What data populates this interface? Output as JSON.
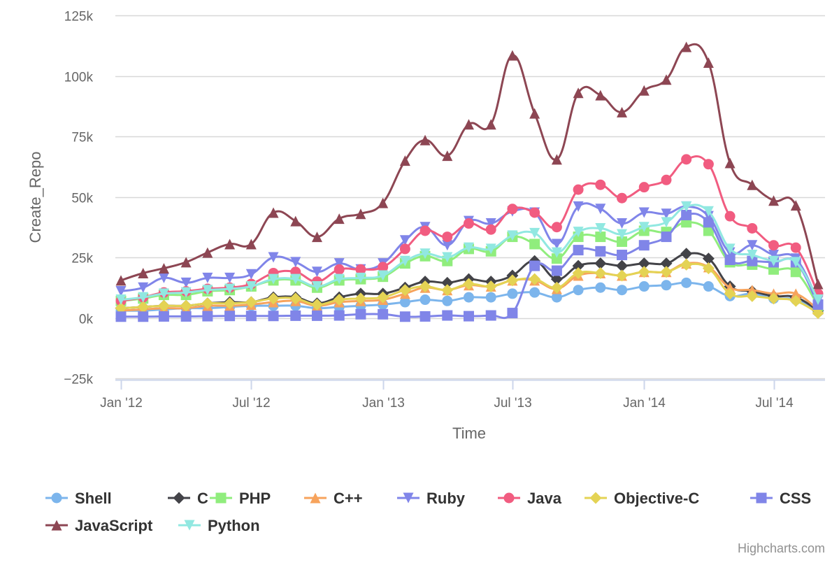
{
  "chart_data": {
    "type": "line",
    "title": "",
    "xlabel": "Time",
    "ylabel": "Create_Repo",
    "ylim": [
      -25000,
      125000
    ],
    "y_ticks": [
      -25000,
      0,
      25000,
      50000,
      75000,
      100000,
      125000
    ],
    "y_tick_labels": [
      "−25k",
      "0k",
      "25k",
      "50k",
      "75k",
      "100k",
      "125k"
    ],
    "x_range": [
      "2012-01-01",
      "2014-09-01"
    ],
    "x_ticks": [
      "2012-01-01",
      "2012-07-01",
      "2013-01-01",
      "2013-07-01",
      "2014-01-01",
      "2014-07-01"
    ],
    "x_tick_labels": [
      "Jan '12",
      "Jul '12",
      "Jan '13",
      "Jul '13",
      "Jan '14",
      "Jul '14"
    ],
    "grid": true,
    "legend_position": "bottom",
    "x": [
      "2012-01-01",
      "2012-02-01",
      "2012-03-01",
      "2012-04-01",
      "2012-05-01",
      "2012-06-01",
      "2012-07-01",
      "2012-08-01",
      "2012-09-01",
      "2012-10-01",
      "2012-11-01",
      "2012-12-01",
      "2013-01-01",
      "2013-02-01",
      "2013-03-01",
      "2013-04-01",
      "2013-05-01",
      "2013-06-01",
      "2013-07-01",
      "2013-08-01",
      "2013-09-01",
      "2013-10-01",
      "2013-11-01",
      "2013-12-01",
      "2014-01-01",
      "2014-02-01",
      "2014-03-01",
      "2014-04-01",
      "2014-05-01",
      "2014-06-01",
      "2014-07-01",
      "2014-08-01",
      "2014-09-01"
    ],
    "series": [
      {
        "name": "Shell",
        "color": "#7cb5ec",
        "marker": "circle",
        "values": [
          3000,
          3000,
          3500,
          4000,
          4000,
          4500,
          5000,
          5000,
          5000,
          4000,
          4500,
          5000,
          5500,
          6500,
          7500,
          7000,
          8500,
          8500,
          10000,
          10500,
          8500,
          11500,
          12500,
          11500,
          13000,
          13500,
          14500,
          13000,
          9000,
          10000,
          8000,
          7500,
          2500
        ]
      },
      {
        "name": "C",
        "color": "#434348",
        "marker": "diamond",
        "values": [
          4000,
          4500,
          5000,
          5000,
          6000,
          6500,
          6500,
          8500,
          8500,
          6000,
          8500,
          10000,
          10000,
          12500,
          15000,
          14500,
          16000,
          15000,
          17500,
          23500,
          16000,
          21500,
          22500,
          21500,
          22500,
          22500,
          26500,
          24500,
          13000,
          11000,
          9000,
          8500,
          3000
        ]
      },
      {
        "name": "PHP",
        "color": "#90ed7d",
        "marker": "square",
        "values": [
          7000,
          8000,
          9500,
          9500,
          11000,
          11500,
          13000,
          15500,
          15500,
          12500,
          15500,
          16000,
          17000,
          22500,
          25500,
          23500,
          28500,
          27500,
          33500,
          30500,
          24500,
          33500,
          33500,
          31500,
          36000,
          35500,
          39500,
          36000,
          23000,
          22000,
          20000,
          19000,
          5000
        ]
      },
      {
        "name": "C++",
        "color": "#f7a35c",
        "marker": "triangle",
        "values": [
          3000,
          3500,
          4000,
          4000,
          5000,
          5000,
          5500,
          6500,
          7000,
          5000,
          6500,
          7000,
          7500,
          10000,
          12500,
          11500,
          13500,
          13000,
          15500,
          15500,
          12000,
          17500,
          18500,
          17500,
          19000,
          19000,
          22500,
          21000,
          12500,
          11500,
          10000,
          10000,
          3500
        ]
      },
      {
        "name": "Ruby",
        "color": "#8085e9",
        "marker": "triangle-down",
        "values": [
          11000,
          12500,
          16500,
          14500,
          16500,
          16500,
          18000,
          25000,
          23000,
          19000,
          22500,
          20000,
          22500,
          32000,
          37500,
          30000,
          40000,
          39000,
          44000,
          43500,
          30500,
          46000,
          45000,
          39000,
          43500,
          43000,
          46000,
          42000,
          27000,
          30000,
          26000,
          24500,
          7000
        ]
      },
      {
        "name": "Java",
        "color": "#f15c80",
        "marker": "circle",
        "values": [
          7000,
          8500,
          10500,
          11000,
          12000,
          12500,
          14000,
          18500,
          19000,
          15000,
          20000,
          20000,
          21000,
          28500,
          36000,
          33500,
          39000,
          36500,
          45000,
          43500,
          37500,
          53000,
          55000,
          49500,
          54000,
          57000,
          65500,
          63500,
          42000,
          37000,
          30000,
          29000,
          10000
        ]
      },
      {
        "name": "Objective-C",
        "color": "#e4d354",
        "marker": "diamond",
        "values": [
          4000,
          4500,
          5000,
          5000,
          6000,
          6000,
          6500,
          8000,
          8000,
          5500,
          7500,
          8000,
          8500,
          11500,
          13000,
          11500,
          14000,
          13000,
          15500,
          16000,
          12500,
          18500,
          18500,
          17500,
          19000,
          19000,
          22000,
          20500,
          10000,
          9000,
          8000,
          7000,
          2000
        ]
      },
      {
        "name": "CSS",
        "color": "#8085e8",
        "marker": "square",
        "values": [
          500,
          500,
          600,
          600,
          700,
          800,
          800,
          800,
          900,
          900,
          1000,
          1500,
          1500,
          500,
          600,
          1000,
          700,
          1000,
          2000,
          21500,
          19500,
          28000,
          27500,
          26000,
          30000,
          33500,
          42500,
          39500,
          24000,
          23500,
          23000,
          23000,
          5500
        ]
      },
      {
        "name": "JavaScript",
        "color": "#8d4653",
        "marker": "triangle",
        "values": [
          15500,
          18500,
          20500,
          23000,
          27000,
          30500,
          30500,
          43500,
          40000,
          33500,
          41000,
          43000,
          47500,
          65000,
          73500,
          67000,
          80000,
          80000,
          108500,
          84500,
          65500,
          93000,
          92000,
          85000,
          94000,
          98500,
          112000,
          105500,
          64000,
          55000,
          48500,
          46500,
          14000
        ]
      },
      {
        "name": "Python",
        "color": "#91e8e1",
        "marker": "triangle-down",
        "values": [
          7500,
          8500,
          10000,
          10500,
          11500,
          12000,
          13000,
          16000,
          16000,
          13000,
          16000,
          16500,
          17500,
          23500,
          26500,
          25000,
          29000,
          28500,
          34000,
          35000,
          27000,
          35500,
          37000,
          34500,
          37500,
          39500,
          46000,
          44000,
          28500,
          26000,
          23500,
          23000,
          7500
        ]
      }
    ]
  },
  "credits": "Highcharts.com"
}
